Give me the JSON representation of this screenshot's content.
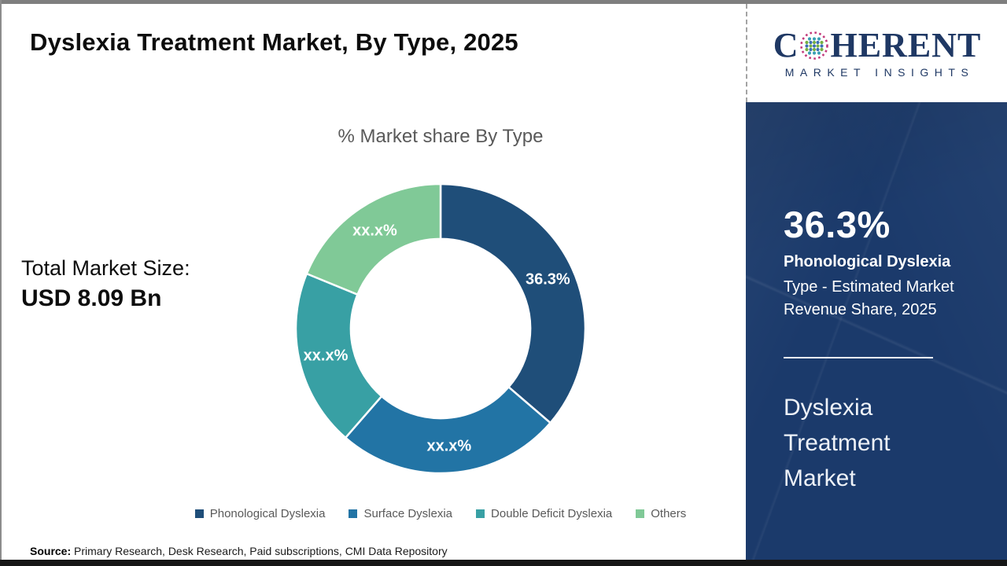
{
  "page": {
    "title": "Dyslexia Treatment Market, By Type, 2025",
    "source_label": "Source:",
    "source_text": " Primary Research, Desk Research, Paid subscriptions, CMI Data Repository"
  },
  "logo": {
    "name": "coherent-market-insights",
    "word_prefix": "C",
    "word_suffix": "HERENT",
    "subtitle": "MARKET INSIGHTS",
    "brand_color": "#1f3864"
  },
  "total_market": {
    "label": "Total Market Size:",
    "value": "USD 8.09 Bn"
  },
  "chart_data": {
    "type": "pie",
    "subtype": "donut",
    "title": "% Market share By Type",
    "start_angle_deg": 0,
    "clockwise": true,
    "inner_radius_ratio": 0.62,
    "legend_position": "bottom",
    "segments": [
      {
        "name": "Phonological Dyslexia",
        "label": "36.3%",
        "share_pct": 36.3,
        "color": "#1f4e79"
      },
      {
        "name": "Surface Dyslexia",
        "label": "xx.x%",
        "share_pct": 25.1,
        "color": "#2274a5"
      },
      {
        "name": "Double Deficit Dyslexia",
        "label": "xx.x%",
        "share_pct": 19.8,
        "color": "#38a0a4"
      },
      {
        "name": "Others",
        "label": "xx.x%",
        "share_pct": 18.8,
        "color": "#80c997"
      }
    ]
  },
  "sidebar": {
    "bg_color": "#1b3a6b",
    "stat_value": "36.3%",
    "stat_name": "Phonological Dyslexia",
    "stat_lines": [
      "Type - Estimated Market",
      "Revenue Share, 2025"
    ],
    "market_name_lines": [
      "Dyslexia",
      "Treatment",
      "Market"
    ]
  }
}
